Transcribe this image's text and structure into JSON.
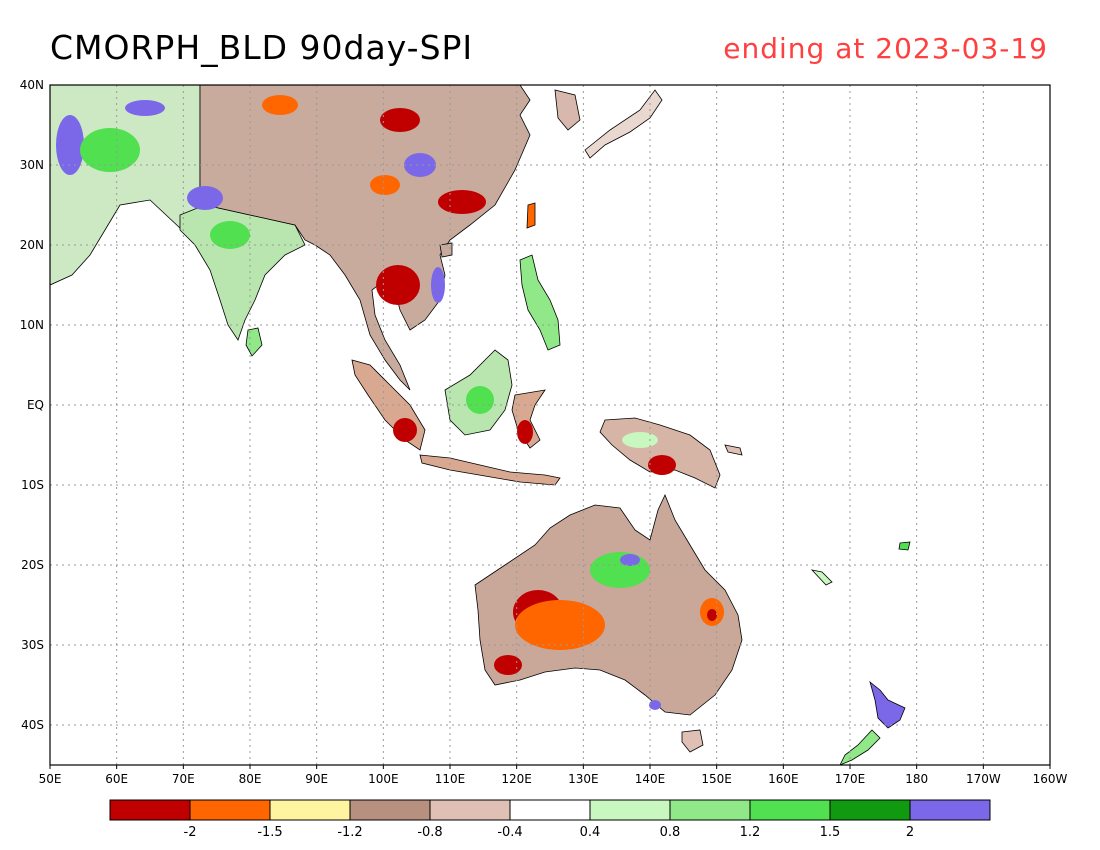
{
  "header": {
    "title": "CMORPH_BLD 90day-SPI",
    "subtitle": "ending at 2023-03-19",
    "subtitle_color": "#ff4040"
  },
  "map": {
    "lon_range": [
      50,
      200
    ],
    "lat_range": [
      -45,
      40
    ],
    "lon_ticks": [
      "50E",
      "60E",
      "70E",
      "80E",
      "90E",
      "100E",
      "110E",
      "120E",
      "130E",
      "140E",
      "150E",
      "160E",
      "170E",
      "180",
      "170W",
      "160W"
    ],
    "lat_ticks": [
      "40N",
      "30N",
      "20N",
      "10N",
      "EQ",
      "10S",
      "20S",
      "30S",
      "40S"
    ],
    "grid_style": "dotted",
    "ocean_color": "#ffffff",
    "coast_color": "#000000"
  },
  "colorbar": {
    "colors": [
      "#c00000",
      "#ff6600",
      "#fff5a0",
      "#b79080",
      "#e0c0b4",
      "#ffffff",
      "#c8f7c0",
      "#90e888",
      "#50e050",
      "#109a10",
      "#7b68e8"
    ],
    "labels": [
      "-2",
      "-1.5",
      "-1.2",
      "-0.8",
      "-0.4",
      "0.4",
      "0.8",
      "1.2",
      "1.5",
      "2"
    ]
  },
  "legend_palette": {
    "very_dry": "#c00000",
    "dry": "#ff6600",
    "near_normal_dry": "#b79080",
    "wet": "#50e050",
    "very_wet": "#7b68e8"
  }
}
